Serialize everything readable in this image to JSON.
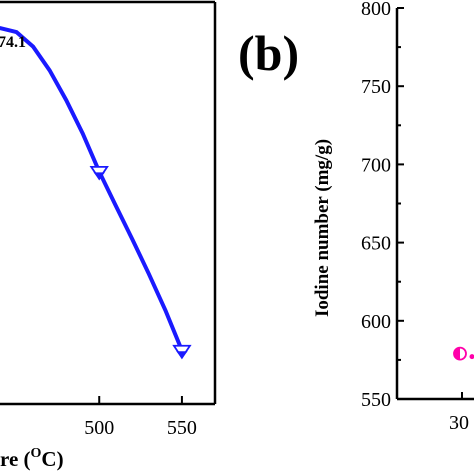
{
  "panel_b_label": "(b)",
  "chart_data": [
    {
      "type": "line",
      "panel": "a",
      "title": "",
      "xlabel": "re (°C)",
      "xlabel_parts": {
        "prefix": "re (",
        "sup": "O",
        "suffix": "C)"
      },
      "ylabel": "",
      "annotation": "74.1",
      "xlim": [
        440,
        570
      ],
      "ylim": [
        0,
        1
      ],
      "x_ticks": [
        500,
        550
      ],
      "series": [
        {
          "color": "#1a1aff",
          "marker": "half-filled triangle down",
          "points": [
            {
              "x": 500,
              "y": 0.578
            },
            {
              "x": 550,
              "y": 0.133
            }
          ],
          "curve": [
            {
              "x": 440,
              "y": 0.935
            },
            {
              "x": 450,
              "y": 0.925
            },
            {
              "x": 460,
              "y": 0.889
            },
            {
              "x": 470,
              "y": 0.83
            },
            {
              "x": 480,
              "y": 0.756
            },
            {
              "x": 490,
              "y": 0.673
            },
            {
              "x": 500,
              "y": 0.578
            },
            {
              "x": 510,
              "y": 0.493
            },
            {
              "x": 520,
              "y": 0.41
            },
            {
              "x": 530,
              "y": 0.324
            },
            {
              "x": 540,
              "y": 0.233
            },
            {
              "x": 550,
              "y": 0.133
            }
          ]
        }
      ]
    },
    {
      "type": "scatter",
      "panel": "b",
      "title": "",
      "xlabel": "",
      "ylabel": "Iodine number (mg/g)",
      "ylim": [
        550,
        800
      ],
      "y_ticks": [
        550,
        600,
        650,
        700,
        750,
        800
      ],
      "x_ticks_visible": [
        "30"
      ],
      "series": [
        {
          "color": "#ff00aa",
          "marker": "half-filled circle",
          "points": [
            {
              "x": 30,
              "y": 579
            }
          ]
        }
      ]
    }
  ]
}
